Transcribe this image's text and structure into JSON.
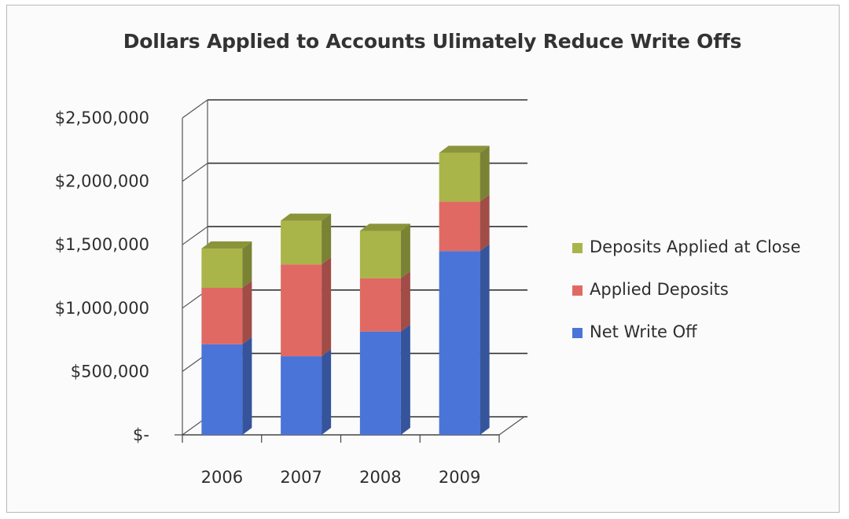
{
  "chart_data": {
    "type": "bar",
    "stacked": true,
    "three_d": true,
    "title": "Dollars Applied to Accounts Ulimately Reduce Write Offs",
    "xlabel": "",
    "ylabel": "",
    "categories": [
      "2006",
      "2007",
      "2008",
      "2009"
    ],
    "series": [
      {
        "name": "Net Write Off",
        "color": "#4a74d8",
        "values": [
          715000,
          620000,
          815000,
          1450000
        ]
      },
      {
        "name": "Applied Deposits",
        "color": "#e06a63",
        "values": [
          445000,
          725000,
          420000,
          390000
        ]
      },
      {
        "name": "Deposits Applied at Close",
        "color": "#a9b548",
        "values": [
          310000,
          345000,
          375000,
          385000
        ]
      }
    ],
    "ylim": [
      0,
      2500000
    ],
    "y_ticks": [
      {
        "value": 0,
        "label": "$-"
      },
      {
        "value": 500000,
        "label": "$500,000"
      },
      {
        "value": 1000000,
        "label": "$1,000,000"
      },
      {
        "value": 1500000,
        "label": "$1,500,000"
      },
      {
        "value": 2000000,
        "label": "$2,000,000"
      },
      {
        "value": 2500000,
        "label": "$2,500,000"
      }
    ],
    "grid": true,
    "legend_position": "right",
    "legend_order": [
      "Deposits Applied at Close",
      "Applied Deposits",
      "Net Write Off"
    ]
  }
}
